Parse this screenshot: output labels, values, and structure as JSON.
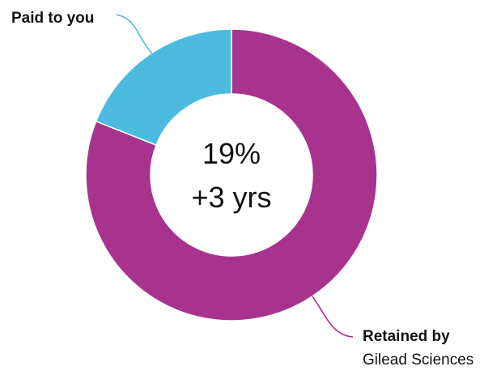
{
  "chart_data": {
    "type": "donut",
    "slices": [
      {
        "label": "Retained by Gilead Sciences",
        "value": 81,
        "color": "#a8338f"
      },
      {
        "label": "Paid to you",
        "value": 19,
        "color": "#4dbbe0"
      }
    ],
    "center_label": {
      "line1": "19%",
      "line2": "+3 yrs"
    },
    "callouts": {
      "paid": {
        "title": "Paid to you"
      },
      "retained": {
        "title": "Retained by",
        "subtitle": "Gilead Sciences"
      }
    },
    "leader_line_colors": {
      "paid": "#4dbbe0",
      "retained": "#a8338f"
    }
  }
}
